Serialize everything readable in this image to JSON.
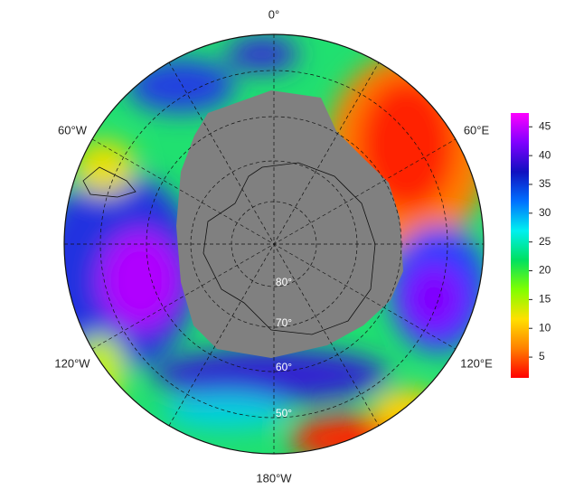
{
  "chart_data": {
    "type": "polar-map",
    "longitude_labels": [
      "0°",
      "60°E",
      "120°E",
      "180°W",
      "120°W",
      "60°W"
    ],
    "latitude_labels": [
      "80°",
      "70°",
      "60°",
      "50°"
    ],
    "colorbar": {
      "clim": [
        1.4,
        47.4
      ],
      "ticks": [
        5,
        10,
        15,
        20,
        25,
        30,
        35,
        40,
        45
      ],
      "colors": [
        "#ff0000",
        "#ff8000",
        "#ffe000",
        "#80ff00",
        "#00e060",
        "#00f0f0",
        "#0070ff",
        "#1010c0",
        "#8000ff",
        "#ff00ff"
      ]
    }
  }
}
